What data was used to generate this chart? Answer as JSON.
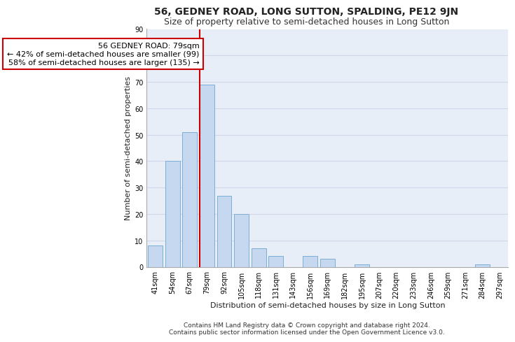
{
  "title": "56, GEDNEY ROAD, LONG SUTTON, SPALDING, PE12 9JN",
  "subtitle": "Size of property relative to semi-detached houses in Long Sutton",
  "xlabel": "Distribution of semi-detached houses by size in Long Sutton",
  "ylabel": "Number of semi-detached properties",
  "categories": [
    "41sqm",
    "54sqm",
    "67sqm",
    "79sqm",
    "92sqm",
    "105sqm",
    "118sqm",
    "131sqm",
    "143sqm",
    "156sqm",
    "169sqm",
    "182sqm",
    "195sqm",
    "207sqm",
    "220sqm",
    "233sqm",
    "246sqm",
    "259sqm",
    "271sqm",
    "284sqm",
    "297sqm"
  ],
  "values": [
    8,
    40,
    51,
    69,
    27,
    20,
    7,
    4,
    0,
    4,
    3,
    0,
    1,
    0,
    0,
    0,
    0,
    0,
    0,
    1,
    0
  ],
  "bar_color": "#c5d8f0",
  "bar_edge_color": "#7bafd4",
  "highlight_bar_index": 3,
  "highlight_line_color": "#cc0000",
  "annotation_text": "56 GEDNEY ROAD: 79sqm\n← 42% of semi-detached houses are smaller (99)\n58% of semi-detached houses are larger (135) →",
  "annotation_box_color": "#ffffff",
  "annotation_box_edge_color": "#cc0000",
  "ylim": [
    0,
    90
  ],
  "yticks": [
    0,
    10,
    20,
    30,
    40,
    50,
    60,
    70,
    80,
    90
  ],
  "grid_color": "#d0d8e8",
  "background_color": "#e8eef8",
  "footer_line1": "Contains HM Land Registry data © Crown copyright and database right 2024.",
  "footer_line2": "Contains public sector information licensed under the Open Government Licence v3.0.",
  "title_fontsize": 10,
  "subtitle_fontsize": 9,
  "axis_label_fontsize": 8,
  "tick_fontsize": 7,
  "annotation_fontsize": 8,
  "footer_fontsize": 6.5
}
